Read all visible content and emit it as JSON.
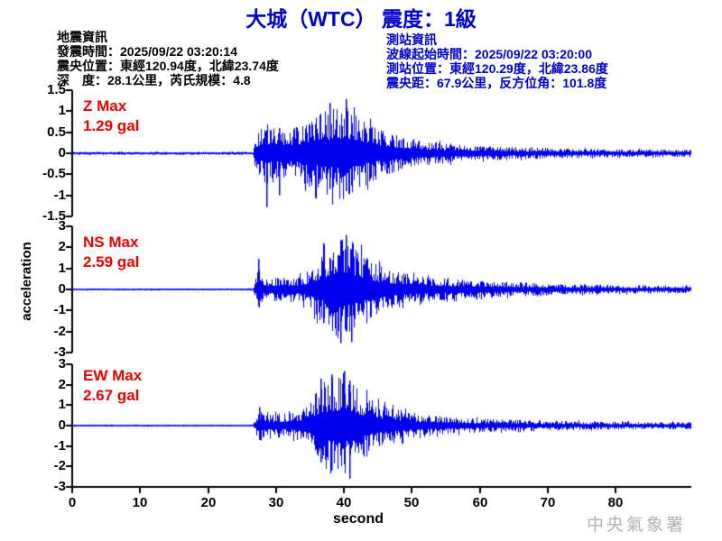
{
  "title": "大城（WTC） 震度：1級",
  "earthquake_info": {
    "heading": "地震資訊",
    "origin_time": "發震時間：2025/09/22 03:20:14",
    "epicenter": "震央位置：東經120.94度，北緯23.74度",
    "depth_magnitude": "深　度：28.1公里，芮氏規模：4.8"
  },
  "station_info": {
    "heading": "測站資訊",
    "trace_start_time": "波線起始時間：2025/09/22 03:20:00",
    "station_location": "測站位置：東經120.29度，北緯23.86度",
    "distance_azimuth": "震央距：67.9公里，反方位角：101.8度"
  },
  "watermark": "中央氣象署",
  "colors": {
    "title": "#0000CC",
    "station_info": "#0000CC",
    "trace": "#0000EE",
    "max_label": "#EE0000",
    "axis": "#000000",
    "watermark": "#B2B2B2",
    "earthquake_info": "#000000"
  },
  "chart_data": {
    "type": "line",
    "title": "大城（WTC） 震度：1級",
    "xlabel": "second",
    "ylabel": "acceleration",
    "unit": "gal",
    "xlim": [
      0,
      91
    ],
    "x_ticks": [
      0,
      10,
      20,
      30,
      40,
      50,
      60,
      70,
      80
    ],
    "event_onset_s": 27,
    "peak_time_s": 40,
    "grid": false,
    "series": [
      {
        "name": "Z",
        "max_label": "Z Max",
        "max_value_label": "1.29 gal",
        "max_gal": 1.29,
        "ylim": [
          -1.5,
          1.5
        ],
        "y_ticks": [
          1.5,
          1,
          0.5,
          0,
          -0.5,
          -1,
          -1.5
        ],
        "envelope": [
          [
            0,
            0.04
          ],
          [
            26.6,
            0.04
          ],
          [
            27,
            0.5
          ],
          [
            28,
            0.62
          ],
          [
            28.6,
            0.8
          ],
          [
            29,
            0.6
          ],
          [
            30,
            0.6
          ],
          [
            31,
            0.62
          ],
          [
            32,
            0.6
          ],
          [
            33,
            0.65
          ],
          [
            34,
            0.75
          ],
          [
            35,
            0.85
          ],
          [
            36,
            0.95
          ],
          [
            37,
            1.0
          ],
          [
            38,
            1.05
          ],
          [
            39,
            1.1
          ],
          [
            40,
            1.25
          ],
          [
            41,
            1.1
          ],
          [
            42,
            0.95
          ],
          [
            43,
            0.8
          ],
          [
            44,
            0.7
          ],
          [
            45,
            0.6
          ],
          [
            46,
            0.55
          ],
          [
            47,
            0.48
          ],
          [
            48,
            0.42
          ],
          [
            50,
            0.35
          ],
          [
            52,
            0.28
          ],
          [
            55,
            0.25
          ],
          [
            58,
            0.2
          ],
          [
            60,
            0.18
          ],
          [
            65,
            0.15
          ],
          [
            70,
            0.13
          ],
          [
            75,
            0.11
          ],
          [
            80,
            0.1
          ],
          [
            91,
            0.09
          ]
        ],
        "spikes": [
          {
            "t": 28.6,
            "up": 0.55,
            "down": 1.28
          },
          {
            "t": 30.4,
            "up": 0.6,
            "down": 1.0
          },
          {
            "t": 37.8,
            "up": 1.2,
            "down": 0.85
          },
          {
            "t": 40.2,
            "up": 1.29,
            "down": 0.9
          }
        ]
      },
      {
        "name": "NS",
        "max_label": "NS Max",
        "max_value_label": "2.59 gal",
        "max_gal": 2.59,
        "ylim": [
          -3,
          3
        ],
        "y_ticks": [
          3,
          2,
          1,
          0,
          -1,
          -2,
          -3
        ],
        "envelope": [
          [
            0,
            0.05
          ],
          [
            26.6,
            0.05
          ],
          [
            27,
            0.6
          ],
          [
            27.4,
            1.1
          ],
          [
            28,
            0.6
          ],
          [
            29,
            0.55
          ],
          [
            30,
            0.6
          ],
          [
            31,
            0.55
          ],
          [
            32,
            0.6
          ],
          [
            33,
            0.6
          ],
          [
            34,
            0.75
          ],
          [
            35,
            0.95
          ],
          [
            36,
            1.4
          ],
          [
            37,
            1.8
          ],
          [
            38,
            2.1
          ],
          [
            39,
            2.35
          ],
          [
            40,
            2.5
          ],
          [
            41,
            2.3
          ],
          [
            42,
            2.0
          ],
          [
            43,
            1.7
          ],
          [
            44,
            1.45
          ],
          [
            45,
            1.2
          ],
          [
            46,
            1.05
          ],
          [
            47,
            0.95
          ],
          [
            48,
            0.85
          ],
          [
            50,
            0.7
          ],
          [
            53,
            0.55
          ],
          [
            56,
            0.5
          ],
          [
            60,
            0.42
          ],
          [
            64,
            0.36
          ],
          [
            68,
            0.31
          ],
          [
            72,
            0.27
          ],
          [
            76,
            0.24
          ],
          [
            80,
            0.22
          ],
          [
            85,
            0.2
          ],
          [
            91,
            0.18
          ]
        ],
        "spikes": [
          {
            "t": 27.4,
            "up": 1.45,
            "down": 0.8
          },
          {
            "t": 36.9,
            "up": 2.2,
            "down": 1.6
          },
          {
            "t": 39.5,
            "up": 2.35,
            "down": 2.55
          },
          {
            "t": 40.2,
            "up": 2.59,
            "down": 2.0
          },
          {
            "t": 41.1,
            "up": 1.9,
            "down": 2.5
          }
        ]
      },
      {
        "name": "EW",
        "max_label": "EW Max",
        "max_value_label": "2.67 gal",
        "max_gal": 2.67,
        "ylim": [
          -3,
          3
        ],
        "y_ticks": [
          3,
          2,
          1,
          0,
          -1,
          -2,
          -3
        ],
        "envelope": [
          [
            0,
            0.05
          ],
          [
            26.6,
            0.05
          ],
          [
            27,
            0.55
          ],
          [
            27.5,
            0.85
          ],
          [
            28,
            0.6
          ],
          [
            29,
            0.55
          ],
          [
            30,
            0.6
          ],
          [
            31,
            0.58
          ],
          [
            32,
            0.62
          ],
          [
            33,
            0.7
          ],
          [
            34,
            0.9
          ],
          [
            35,
            1.2
          ],
          [
            36,
            1.7
          ],
          [
            37,
            2.1
          ],
          [
            38,
            2.4
          ],
          [
            39,
            2.3
          ],
          [
            40,
            2.55
          ],
          [
            41,
            2.35
          ],
          [
            42,
            1.9
          ],
          [
            43,
            1.6
          ],
          [
            44,
            1.35
          ],
          [
            45,
            1.15
          ],
          [
            46,
            1.0
          ],
          [
            47,
            0.9
          ],
          [
            48,
            0.8
          ],
          [
            50,
            0.65
          ],
          [
            52,
            0.55
          ],
          [
            54,
            0.48
          ],
          [
            56,
            0.42
          ],
          [
            58,
            0.38
          ],
          [
            60,
            0.35
          ],
          [
            64,
            0.3
          ],
          [
            68,
            0.27
          ],
          [
            72,
            0.24
          ],
          [
            76,
            0.22
          ],
          [
            80,
            0.2
          ],
          [
            85,
            0.18
          ],
          [
            91,
            0.17
          ]
        ],
        "spikes": [
          {
            "t": 27.5,
            "up": 0.9,
            "down": 0.7
          },
          {
            "t": 36.5,
            "up": 2.3,
            "down": 1.8
          },
          {
            "t": 38.1,
            "up": 2.5,
            "down": 2.2
          },
          {
            "t": 40.0,
            "up": 2.67,
            "down": 1.9
          },
          {
            "t": 40.8,
            "up": 2.2,
            "down": 2.6
          }
        ]
      }
    ]
  }
}
